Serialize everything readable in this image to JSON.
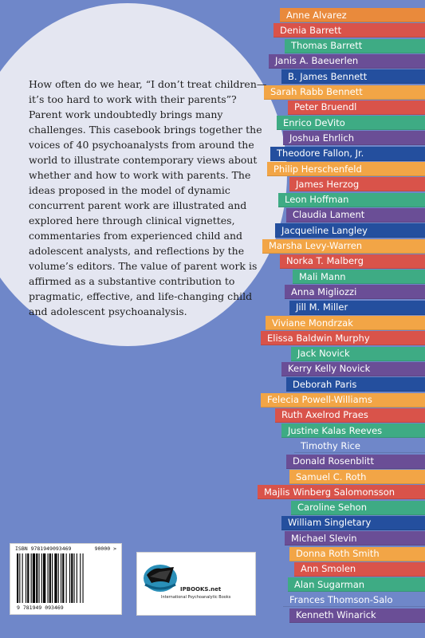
{
  "blurb": "How often do we hear, “I don’t treat children—it’s too hard to work with their parents”? Parent work undoubtedly brings many challenges. This casebook brings together the voices of 40 psychoanalysts from around the world to illustrate contemporary views about whether and how to work with parents. The ideas proposed in the model of dynamic concurrent parent work are illustrated and explored here through clinical vignettes, commentaries from experienced child and adolescent analysts, and reflections by the volume’s editors. The value of parent work is affirmed as a substantive contribution to pragmatic, effective, and life-changing child and adolescent psychoanalysis.",
  "contributors": [
    {
      "name": "Anne Alvarez",
      "color": "#e98a3c",
      "text": "#ffffff"
    },
    {
      "name": "Denia Barrett",
      "color": "#d9534a",
      "text": "#ffffff"
    },
    {
      "name": "Thomas Barrett",
      "color": "#3eab84",
      "text": "#ffffff"
    },
    {
      "name": "Janis A. Baeuerlen",
      "color": "#6a4e96",
      "text": "#ffffff"
    },
    {
      "name": "B. James Bennett",
      "color": "#244f9e",
      "text": "#ffffff"
    },
    {
      "name": "Sarah Rabb Bennett",
      "color": "#f2a546",
      "text": "#ffffff"
    },
    {
      "name": "Peter Bruendl",
      "color": "#d9534a",
      "text": "#ffffff"
    },
    {
      "name": "Enrico DeVito",
      "color": "#3eab84",
      "text": "#ffffff"
    },
    {
      "name": "Joshua Ehrlich",
      "color": "#6a4e96",
      "text": "#ffffff"
    },
    {
      "name": "Theodore Fallon, Jr.",
      "color": "#244f9e",
      "text": "#ffffff"
    },
    {
      "name": "Philip Herschenfeld",
      "color": "#f2a546",
      "text": "#ffffff"
    },
    {
      "name": "James Herzog",
      "color": "#d9534a",
      "text": "#ffffff"
    },
    {
      "name": "Leon Hoffman",
      "color": "#3eab84",
      "text": "#ffffff"
    },
    {
      "name": "Claudia Lament",
      "color": "#6a4e96",
      "text": "#ffffff"
    },
    {
      "name": "Jacqueline Langley",
      "color": "#244f9e",
      "text": "#ffffff"
    },
    {
      "name": "Marsha Levy-Warren",
      "color": "#f2a546",
      "text": "#ffffff"
    },
    {
      "name": "Norka T. Malberg",
      "color": "#d9534a",
      "text": "#ffffff"
    },
    {
      "name": "Mali Mann",
      "color": "#3eab84",
      "text": "#ffffff"
    },
    {
      "name": "Anna Migliozzi",
      "color": "#6a4e96",
      "text": "#ffffff"
    },
    {
      "name": "Jill M. Miller",
      "color": "#244f9e",
      "text": "#ffffff"
    },
    {
      "name": "Viviane Mondrzak",
      "color": "#f2a546",
      "text": "#ffffff"
    },
    {
      "name": "Elissa Baldwin Murphy",
      "color": "#d9534a",
      "text": "#ffffff"
    },
    {
      "name": "Jack Novick",
      "color": "#3eab84",
      "text": "#ffffff"
    },
    {
      "name": "Kerry Kelly Novick",
      "color": "#6a4e96",
      "text": "#ffffff"
    },
    {
      "name": "Deborah Paris",
      "color": "#244f9e",
      "text": "#ffffff"
    },
    {
      "name": "Felecia Powell-Williams",
      "color": "#f2a546",
      "text": "#ffffff"
    },
    {
      "name": "Ruth Axelrod Praes",
      "color": "#d9534a",
      "text": "#ffffff"
    },
    {
      "name": "Justine Kalas Reeves",
      "color": "#3eab84",
      "text": "#ffffff"
    },
    {
      "name": "Timothy Rice",
      "color": "#6f87c9",
      "text": "#ffffff"
    },
    {
      "name": "Donald Rosenblitt",
      "color": "#6a4e96",
      "text": "#ffffff"
    },
    {
      "name": "Samuel C. Roth",
      "color": "#f2a546",
      "text": "#ffffff"
    },
    {
      "name": "Majlis Winberg Salomonsson",
      "color": "#d9534a",
      "text": "#ffffff"
    },
    {
      "name": "Caroline Sehon",
      "color": "#3eab84",
      "text": "#ffffff"
    },
    {
      "name": "William Singletary",
      "color": "#244f9e",
      "text": "#ffffff"
    },
    {
      "name": "Michael Slevin",
      "color": "#6a4e96",
      "text": "#ffffff"
    },
    {
      "name": "Donna Roth Smith",
      "color": "#f2a546",
      "text": "#ffffff"
    },
    {
      "name": "Ann Smolen",
      "color": "#d9534a",
      "text": "#ffffff"
    },
    {
      "name": "Alan Sugarman",
      "color": "#3eab84",
      "text": "#ffffff"
    },
    {
      "name": "Frances Thomson-Salo",
      "color": "#6f87c9",
      "text": "#ffffff"
    },
    {
      "name": "Kenneth Winarick",
      "color": "#6a4e96",
      "text": "#ffffff"
    }
  ],
  "barcode": {
    "isbn_top": "ISBN 9781949093469",
    "price_code": "90000 >",
    "isbn_bottom": "9 781949 093469"
  },
  "publisher": {
    "name": "IPBOOKS.net",
    "subtitle": "International Psychoanalytic Books"
  },
  "colors": {
    "background": "#6f87c9",
    "bubble": "#e4e6f1"
  }
}
